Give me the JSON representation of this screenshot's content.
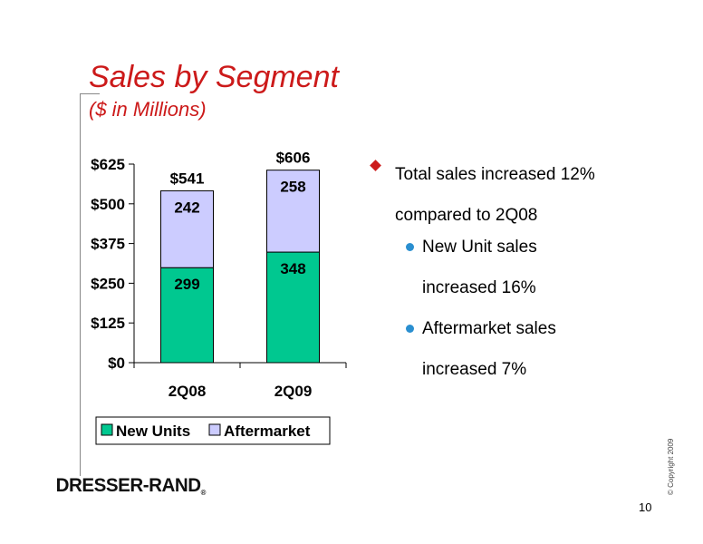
{
  "slide": {
    "title": "Sales by Segment",
    "subtitle": "($ in Millions)",
    "page_number": "10",
    "copyright": "© Copyright 2009",
    "logo_text": "DRESSER-RAND",
    "logo_mark": "®"
  },
  "bullets": [
    {
      "text_line1": "Total sales increased 12%",
      "text_line2": "compared to 2Q08"
    }
  ],
  "sub_bullets": [
    {
      "line1": "New Unit sales",
      "line2": "increased 16%"
    },
    {
      "line1": "Aftermarket sales",
      "line2": "increased 7%"
    }
  ],
  "chart_data": {
    "type": "bar",
    "stacked": true,
    "categories": [
      "2Q08",
      "2Q09"
    ],
    "series": [
      {
        "name": "New Units",
        "values": [
          299,
          348
        ],
        "color": "#00c890"
      },
      {
        "name": "Aftermarket",
        "values": [
          242,
          258
        ],
        "color": "#ccccff"
      }
    ],
    "totals": [
      541,
      606
    ],
    "total_labels": [
      "$541",
      "$606"
    ],
    "segment_labels": [
      [
        "299",
        "242"
      ],
      [
        "348",
        "258"
      ]
    ],
    "ylim": [
      0,
      625
    ],
    "yticks": [
      0,
      125,
      250,
      375,
      500,
      625
    ],
    "ytick_labels": [
      "$0",
      "$125",
      "$250",
      "$375",
      "$500",
      "$625"
    ],
    "legend_position": "bottom",
    "grid": false
  }
}
